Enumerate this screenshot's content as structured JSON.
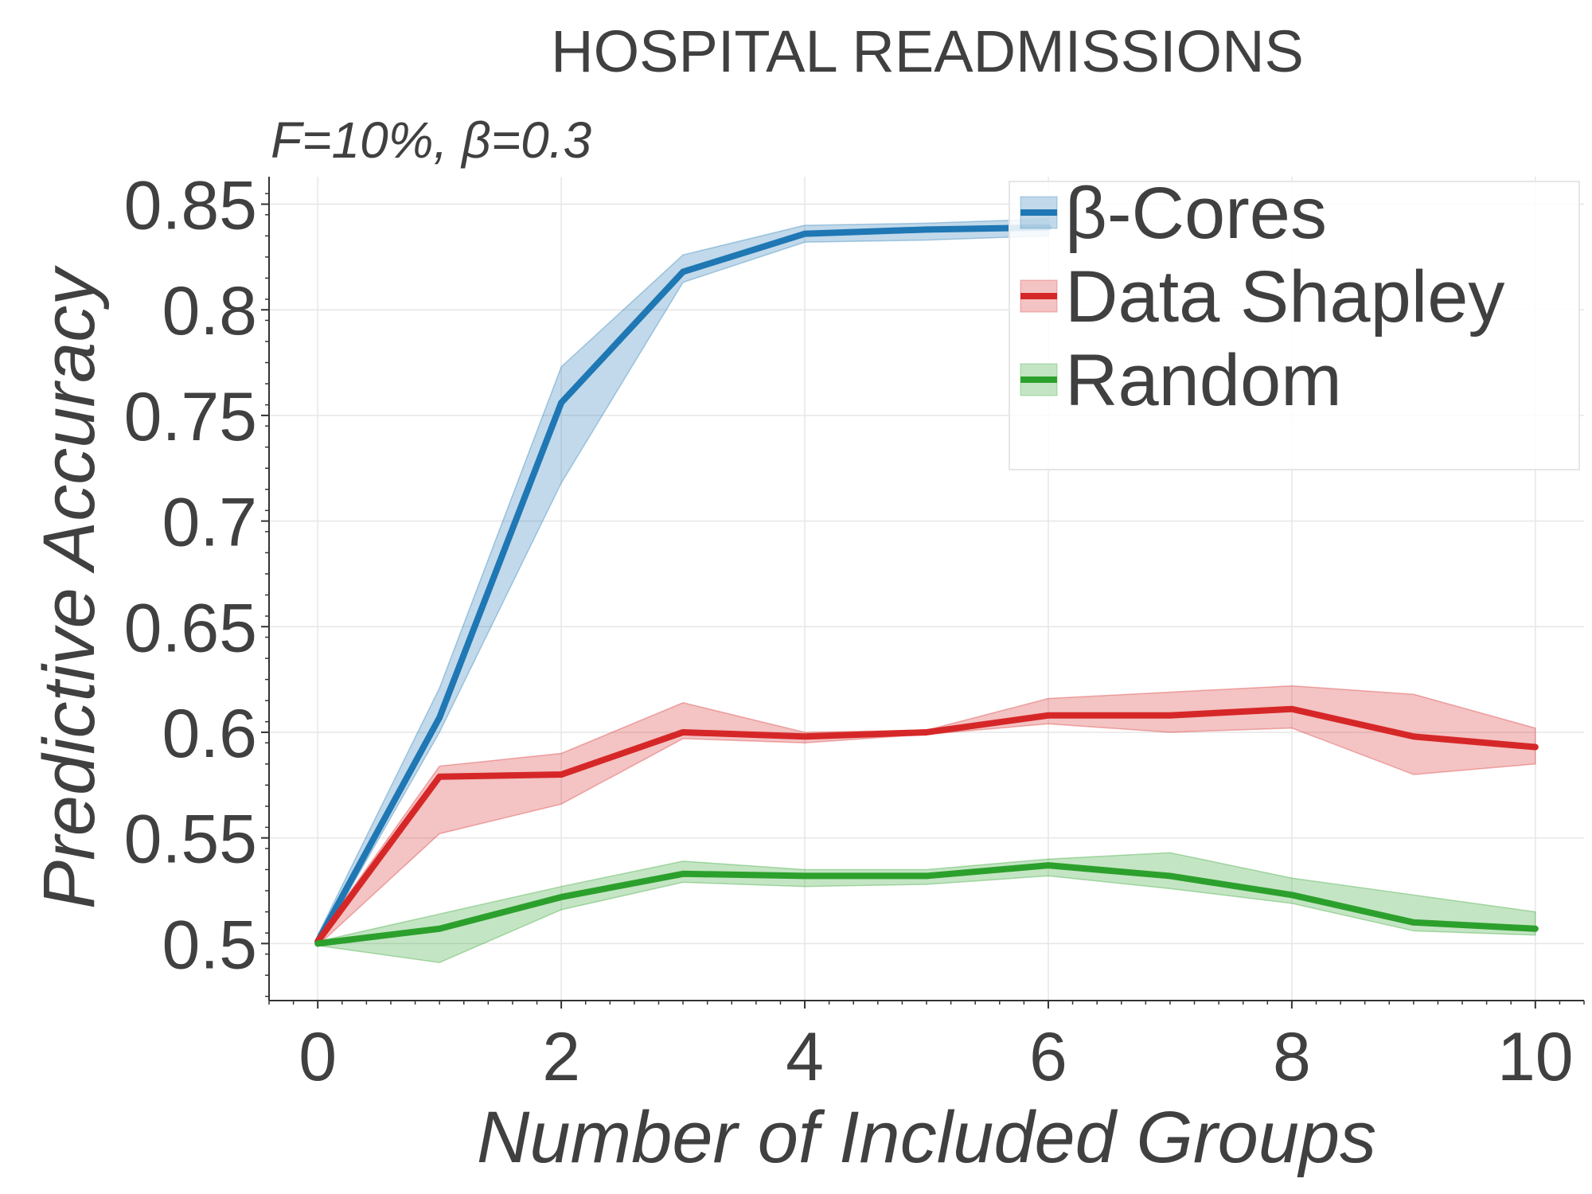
{
  "chart_data": {
    "type": "line",
    "title": "HOSPITAL READMISSIONS",
    "subtitle": "F=10%,  β=0.3",
    "xlabel": "Number of Included Groups",
    "ylabel": "Predictive Accuracy",
    "xlim": [
      -0.4,
      10.4
    ],
    "ylim": [
      0.473,
      0.863
    ],
    "x_ticks": [
      0,
      2,
      4,
      6,
      8,
      10
    ],
    "y_ticks": [
      0.5,
      0.55,
      0.6,
      0.65,
      0.7,
      0.75,
      0.8,
      0.85
    ],
    "y_tick_labels": [
      "0.5",
      "0.55",
      "0.6",
      "0.65",
      "0.7",
      "0.75",
      "0.8",
      "0.85"
    ],
    "grid": true,
    "legend_position": "top-right",
    "x": [
      0,
      1,
      2,
      3,
      4,
      5,
      6,
      7,
      8,
      9,
      10
    ],
    "series": [
      {
        "name": "β-Cores",
        "color": "#1f77b4",
        "values": [
          0.501,
          0.607,
          0.756,
          0.818,
          0.836,
          0.838,
          0.839,
          null,
          null,
          null,
          null
        ],
        "lower": [
          0.499,
          0.6,
          0.718,
          0.813,
          0.832,
          0.833,
          0.835,
          null,
          null,
          null,
          null
        ],
        "upper": [
          0.504,
          0.621,
          0.773,
          0.826,
          0.84,
          0.841,
          0.843,
          null,
          null,
          null,
          null
        ]
      },
      {
        "name": "Data Shapley",
        "color": "#d62728",
        "values": [
          0.501,
          0.579,
          0.58,
          0.6,
          0.598,
          0.6,
          0.608,
          0.608,
          0.611,
          0.598,
          0.593
        ],
        "lower": [
          0.499,
          0.552,
          0.566,
          0.597,
          0.595,
          0.599,
          0.604,
          0.6,
          0.602,
          0.58,
          0.585
        ],
        "upper": [
          0.503,
          0.584,
          0.59,
          0.614,
          0.6,
          0.601,
          0.616,
          0.619,
          0.622,
          0.618,
          0.602
        ]
      },
      {
        "name": "Random",
        "color": "#2ca02c",
        "values": [
          0.5,
          0.507,
          0.522,
          0.533,
          0.532,
          0.532,
          0.537,
          0.532,
          0.523,
          0.51,
          0.507
        ],
        "lower": [
          0.499,
          0.491,
          0.516,
          0.529,
          0.527,
          0.528,
          0.532,
          0.526,
          0.519,
          0.506,
          0.504
        ],
        "upper": [
          0.501,
          0.514,
          0.527,
          0.539,
          0.535,
          0.535,
          0.54,
          0.543,
          0.531,
          0.523,
          0.515
        ]
      }
    ]
  }
}
